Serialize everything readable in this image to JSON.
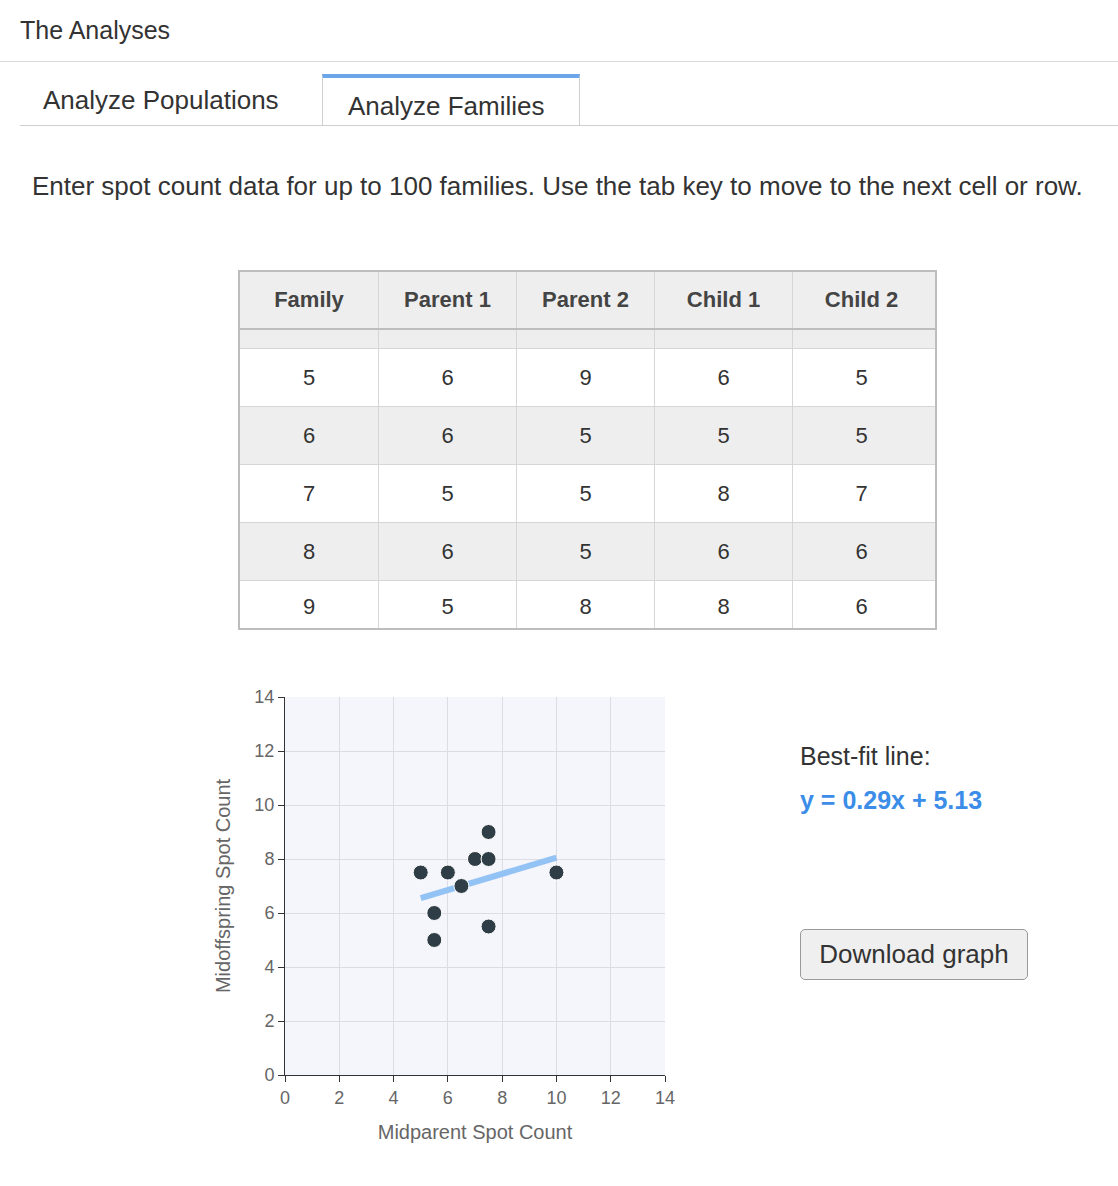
{
  "header": "The Analyses",
  "tabs": [
    "Analyze Populations",
    "Analyze Families"
  ],
  "active_tab": "Analyze Families",
  "instructions": "Enter spot count data for up to 100 families. Use the tab key to move to the next cell or row.",
  "table": {
    "columns": [
      "Family",
      "Parent 1",
      "Parent 2",
      "Child 1",
      "Child 2"
    ],
    "rows": [
      [
        5,
        6,
        9,
        6,
        5
      ],
      [
        6,
        6,
        5,
        5,
        5
      ],
      [
        7,
        5,
        5,
        8,
        7
      ],
      [
        8,
        6,
        5,
        6,
        6
      ],
      [
        9,
        5,
        8,
        8,
        6
      ]
    ]
  },
  "chart_data": {
    "type": "scatter",
    "x_label": "Midparent Spot Count",
    "y_label": "Midoffspring Spot Count",
    "xlim": [
      0,
      14
    ],
    "ylim": [
      0,
      14
    ],
    "xticks": [
      0,
      2,
      4,
      6,
      8,
      10,
      12,
      14
    ],
    "yticks": [
      0,
      2,
      4,
      6,
      8,
      10,
      12,
      14
    ],
    "grid": true,
    "series": [
      {
        "type": "scatter",
        "marker": "circle",
        "color": "#2f3e46",
        "x": [
          5,
          6,
          7,
          7.5,
          7.5,
          6.5,
          5.5,
          5.5,
          7.5,
          10
        ],
        "values": [
          7.5,
          7.5,
          8,
          8,
          9,
          7,
          6,
          5,
          5.5,
          7.5
        ]
      },
      {
        "type": "line",
        "line_style": "solid",
        "color": "#93c2f5",
        "x": [
          5,
          10
        ],
        "values": [
          6.55,
          8.05
        ]
      }
    ]
  },
  "best_fit": {
    "label": "Best-fit line:",
    "equation": "y = 0.29x + 5.13"
  },
  "button": "Download graph"
}
